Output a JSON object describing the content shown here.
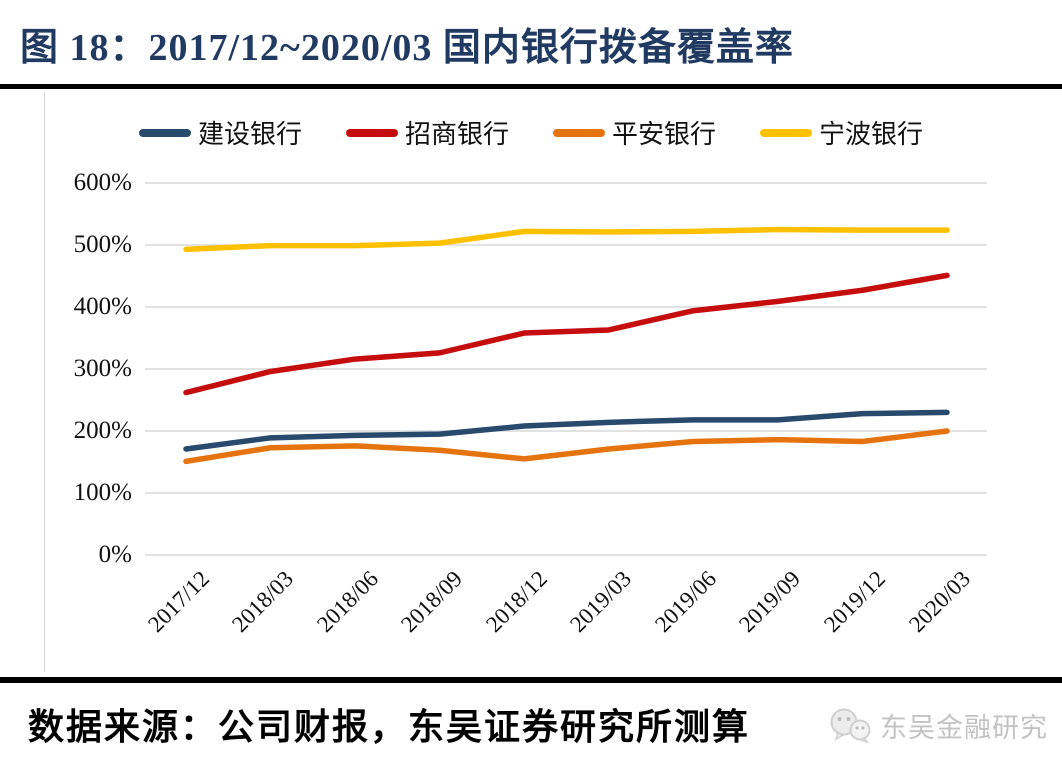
{
  "page": {
    "title": "图 18：2017/12~2020/03 国内银行拨备覆盖率",
    "footer": {
      "source_text": "数据来源：公司财报，东吴证券研究所测算",
      "watermark_text": "东吴金融研究",
      "watermark_icon": "wechat-bubbles-icon"
    }
  },
  "chart_data": {
    "type": "line",
    "title": "2017/12~2020/03 国内银行拨备覆盖率",
    "unit": "percent",
    "categories": [
      "2017/12",
      "2018/03",
      "2018/06",
      "2018/09",
      "2018/12",
      "2019/03",
      "2019/06",
      "2019/09",
      "2019/12",
      "2020/03"
    ],
    "series": [
      {
        "name": "建设银行",
        "color": "#284A6D",
        "values": [
          171,
          189,
          193,
          195,
          208,
          214,
          218,
          218,
          228,
          230
        ]
      },
      {
        "name": "招商银行",
        "color": "#C50D0D",
        "values": [
          262,
          296,
          316,
          326,
          358,
          363,
          394,
          409,
          427,
          451
        ]
      },
      {
        "name": "平安银行",
        "color": "#E5740F",
        "values": [
          151,
          173,
          176,
          169,
          155,
          171,
          183,
          186,
          183,
          200
        ]
      },
      {
        "name": "宁波银行",
        "color": "#FFC000",
        "values": [
          493,
          499,
          499,
          503,
          522,
          521,
          522,
          525,
          524,
          524
        ]
      }
    ],
    "ylim": [
      0,
      600
    ],
    "ytick_step": 100,
    "yticks": [
      "0%",
      "100%",
      "200%",
      "300%",
      "400%",
      "500%",
      "600%"
    ],
    "grid": true,
    "gridline_color": "#D9D9D9",
    "legend_position": "top",
    "xlabel": "",
    "ylabel": ""
  }
}
